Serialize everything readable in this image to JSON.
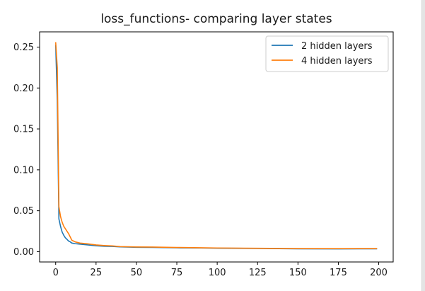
{
  "chart_data": {
    "type": "line",
    "title": "loss_functions- comparing layer states",
    "xlabel": "",
    "ylabel": "",
    "xlim": [
      -9.95,
      208.95
    ],
    "ylim": [
      -0.0126,
      0.2686
    ],
    "xticks": [
      0,
      25,
      50,
      75,
      100,
      125,
      150,
      175,
      200
    ],
    "yticks": [
      0.0,
      0.05,
      0.1,
      0.15,
      0.2,
      0.25
    ],
    "ytick_labels": [
      "0.00",
      "0.05",
      "0.10",
      "0.15",
      "0.20",
      "0.25"
    ],
    "grid": false,
    "legend_position": "upper right",
    "series": [
      {
        "name": "2 hidden layers",
        "color": "#1f77b4",
        "points": [
          [
            0,
            0.253
          ],
          [
            1,
            0.185
          ],
          [
            2,
            0.04
          ],
          [
            3,
            0.031
          ],
          [
            4,
            0.024
          ],
          [
            5,
            0.02
          ],
          [
            6,
            0.017
          ],
          [
            7,
            0.015
          ],
          [
            8,
            0.013
          ],
          [
            9,
            0.012
          ],
          [
            10,
            0.0105
          ],
          [
            12,
            0.0098
          ],
          [
            15,
            0.0092
          ],
          [
            20,
            0.0082
          ],
          [
            25,
            0.0072
          ],
          [
            30,
            0.0066
          ],
          [
            35,
            0.0064
          ],
          [
            40,
            0.0058
          ],
          [
            50,
            0.0053
          ],
          [
            60,
            0.0052
          ],
          [
            75,
            0.0047
          ],
          [
            90,
            0.0045
          ],
          [
            100,
            0.0042
          ],
          [
            125,
            0.0039
          ],
          [
            150,
            0.0034
          ],
          [
            175,
            0.0033
          ],
          [
            199,
            0.0035
          ]
        ]
      },
      {
        "name": "4 hidden layers",
        "color": "#ff7f0e",
        "points": [
          [
            0,
            0.256
          ],
          [
            1,
            0.225
          ],
          [
            2,
            0.055
          ],
          [
            3,
            0.043
          ],
          [
            4,
            0.036
          ],
          [
            5,
            0.031
          ],
          [
            6,
            0.028
          ],
          [
            7,
            0.025
          ],
          [
            8,
            0.022
          ],
          [
            9,
            0.018
          ],
          [
            10,
            0.014
          ],
          [
            12,
            0.012
          ],
          [
            15,
            0.0105
          ],
          [
            20,
            0.0095
          ],
          [
            25,
            0.0082
          ],
          [
            30,
            0.0075
          ],
          [
            35,
            0.007
          ],
          [
            40,
            0.0062
          ],
          [
            50,
            0.0057
          ],
          [
            60,
            0.0056
          ],
          [
            75,
            0.0051
          ],
          [
            90,
            0.0048
          ],
          [
            100,
            0.0045
          ],
          [
            125,
            0.0041
          ],
          [
            150,
            0.0038
          ],
          [
            175,
            0.0037
          ],
          [
            199,
            0.0038
          ]
        ]
      }
    ]
  }
}
